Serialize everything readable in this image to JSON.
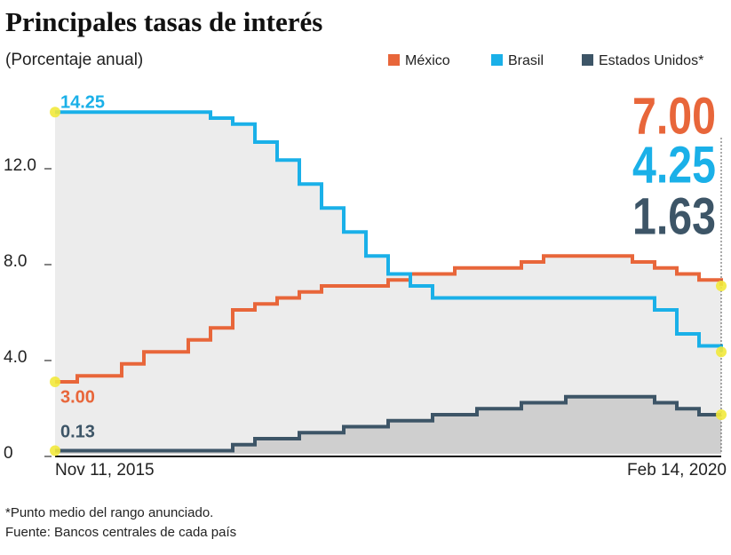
{
  "chart_data": {
    "type": "step-line",
    "title": "Principales tasas de interés",
    "subtitle": "(Porcentaje anual)",
    "notes": [
      "*Punto medio del rango anunciado.",
      "Fuente: Bancos centrales de cada país"
    ],
    "categories": [
      "Nov 11, 2015",
      null,
      null,
      null,
      null,
      null,
      null,
      null,
      null,
      null,
      null,
      null,
      null,
      null,
      null,
      null,
      null,
      null,
      null,
      null,
      null,
      null,
      null,
      null,
      null,
      null,
      null,
      null,
      null,
      null,
      "Feb 14, 2020"
    ],
    "series": [
      {
        "name": "México",
        "color": "#e8663a",
        "values": [
          3.0,
          3.25,
          3.25,
          3.75,
          4.25,
          4.25,
          4.75,
          5.25,
          6.0,
          6.25,
          6.5,
          6.75,
          7.0,
          7.0,
          7.0,
          7.25,
          7.5,
          7.5,
          7.75,
          7.75,
          7.75,
          8.0,
          8.25,
          8.25,
          8.25,
          8.25,
          8.0,
          7.75,
          7.5,
          7.25,
          7.0
        ],
        "value_labels": [
          "3.00",
          null,
          null,
          null,
          null,
          null,
          null,
          null,
          null,
          null,
          null,
          null,
          null,
          null,
          null,
          null,
          null,
          null,
          null,
          null,
          null,
          null,
          null,
          null,
          null,
          null,
          null,
          null,
          null,
          null,
          "7.00"
        ]
      },
      {
        "name": "Brasil",
        "color": "#1ab0e8",
        "values": [
          14.25,
          14.25,
          14.25,
          14.25,
          14.25,
          14.25,
          14.25,
          14.0,
          13.75,
          13.0,
          12.25,
          11.25,
          10.25,
          9.25,
          8.25,
          7.5,
          7.0,
          6.5,
          6.5,
          6.5,
          6.5,
          6.5,
          6.5,
          6.5,
          6.5,
          6.5,
          6.5,
          6.0,
          5.0,
          4.5,
          4.25
        ],
        "value_labels": [
          "14.25",
          null,
          null,
          null,
          null,
          null,
          null,
          null,
          null,
          null,
          null,
          null,
          null,
          null,
          null,
          null,
          null,
          null,
          null,
          null,
          null,
          null,
          null,
          null,
          null,
          null,
          null,
          null,
          null,
          null,
          "4.25"
        ]
      },
      {
        "name": "Estados Unidos*",
        "color": "#3d5567",
        "values": [
          0.13,
          0.13,
          0.13,
          0.13,
          0.13,
          0.13,
          0.13,
          0.13,
          0.38,
          0.63,
          0.63,
          0.88,
          0.88,
          1.13,
          1.13,
          1.38,
          1.38,
          1.63,
          1.63,
          1.88,
          1.88,
          2.13,
          2.13,
          2.38,
          2.38,
          2.38,
          2.38,
          2.13,
          1.88,
          1.63,
          1.63
        ],
        "value_labels": [
          "0.13",
          null,
          null,
          null,
          null,
          null,
          null,
          null,
          null,
          null,
          null,
          null,
          null,
          null,
          null,
          null,
          null,
          null,
          null,
          null,
          null,
          null,
          null,
          null,
          null,
          null,
          null,
          null,
          null,
          null,
          "1.63"
        ]
      }
    ],
    "ylim": [
      0,
      15
    ],
    "yticks": [
      0,
      {
        "value": 4,
        "label": "4.0"
      },
      {
        "value": 8,
        "label": "8.0"
      },
      {
        "value": 12,
        "label": "12.0"
      }
    ],
    "legend": "top-right"
  }
}
